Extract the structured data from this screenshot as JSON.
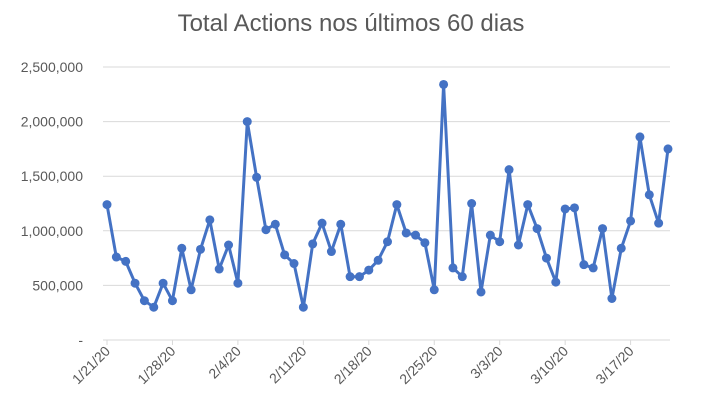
{
  "chart_data": {
    "type": "line",
    "title": "Total Actions nos últimos 60 dias",
    "xlabel": "",
    "ylabel": "",
    "ylim": [
      0,
      2500000
    ],
    "grid": true,
    "legend": "none",
    "y_ticks": [
      {
        "value": 0,
        "label": "-"
      },
      {
        "value": 500000,
        "label": "500,000"
      },
      {
        "value": 1000000,
        "label": "1,000,000"
      },
      {
        "value": 1500000,
        "label": "1,500,000"
      },
      {
        "value": 2000000,
        "label": "2,000,000"
      },
      {
        "value": 2500000,
        "label": "2,500,000"
      }
    ],
    "x_ticks": [
      {
        "index": 0,
        "label": "1/21/20"
      },
      {
        "index": 7,
        "label": "1/28/20"
      },
      {
        "index": 14,
        "label": "2/4/20"
      },
      {
        "index": 21,
        "label": "2/11/20"
      },
      {
        "index": 28,
        "label": "2/18/20"
      },
      {
        "index": 35,
        "label": "2/25/20"
      },
      {
        "index": 42,
        "label": "3/3/20"
      },
      {
        "index": 49,
        "label": "3/10/20"
      },
      {
        "index": 56,
        "label": "3/17/20"
      }
    ],
    "series": [
      {
        "color": "#4472C4",
        "values": [
          1240000,
          760000,
          720000,
          520000,
          360000,
          300000,
          520000,
          360000,
          840000,
          460000,
          830000,
          1100000,
          650000,
          870000,
          520000,
          2000000,
          1490000,
          1010000,
          1060000,
          780000,
          700000,
          300000,
          880000,
          1070000,
          810000,
          1060000,
          580000,
          580000,
          640000,
          730000,
          900000,
          1240000,
          980000,
          960000,
          890000,
          460000,
          2340000,
          660000,
          580000,
          1250000,
          440000,
          960000,
          900000,
          1560000,
          870000,
          1240000,
          1020000,
          750000,
          530000,
          1200000,
          1210000,
          690000,
          660000,
          1020000,
          380000,
          840000,
          1090000,
          1860000,
          1330000,
          1070000,
          1750000
        ]
      }
    ]
  }
}
